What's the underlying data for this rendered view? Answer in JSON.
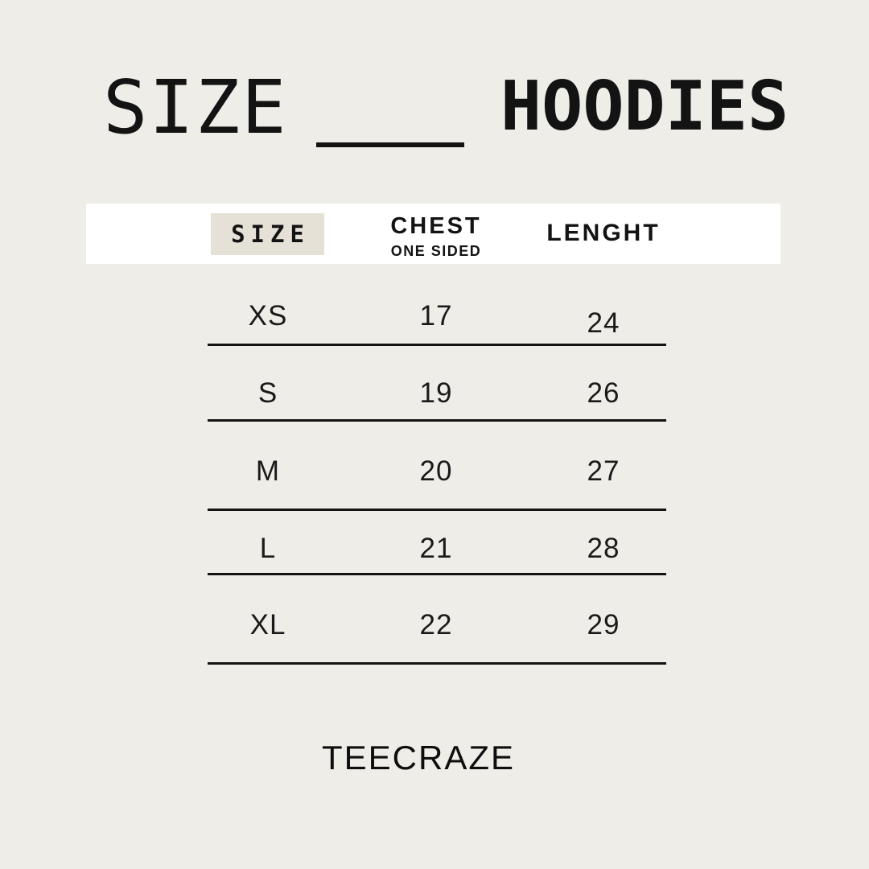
{
  "title": {
    "word": "SIZE",
    "category": "HOODIES"
  },
  "header": {
    "size_label": "SIZE",
    "chest_label": "CHEST",
    "chest_sublabel": "ONE SIDED",
    "length_label": "LENGHT"
  },
  "footer": {
    "brand": "TEECRAZE"
  },
  "colors": {
    "background": "#efede8",
    "band": "#ffffff",
    "highlight": "#e6e1d6",
    "ink": "#131313"
  },
  "chart_data": {
    "type": "table",
    "title": "SIZE — HOODIES",
    "columns": [
      "SIZE",
      "CHEST ONE SIDED",
      "LENGHT"
    ],
    "rows": [
      [
        "XS",
        "17",
        "24"
      ],
      [
        "S",
        "19",
        "26"
      ],
      [
        "M",
        "20",
        "27"
      ],
      [
        "L",
        "21",
        "28"
      ],
      [
        "XL",
        "22",
        "29"
      ]
    ]
  }
}
